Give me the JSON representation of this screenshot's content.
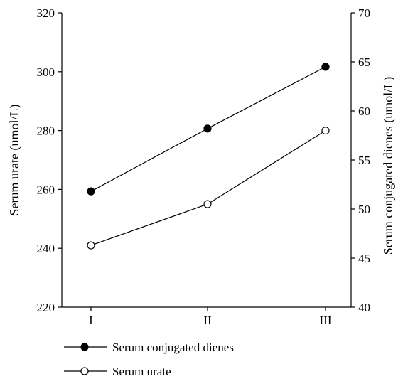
{
  "chart_data": {
    "type": "line",
    "categories": [
      "I",
      "II",
      "III"
    ],
    "series": [
      {
        "name": "Serum conjugated dienes",
        "axis": "right",
        "marker": "filled-circle",
        "values": [
          51.8,
          58.2,
          64.5
        ]
      },
      {
        "name": "Serum urate",
        "axis": "left",
        "marker": "open-circle",
        "values": [
          241,
          255,
          280
        ]
      }
    ],
    "y_left": {
      "label": "Serum urate (umol/L)",
      "lim": [
        220,
        320
      ],
      "ticks": [
        "220",
        "240",
        "260",
        "280",
        "300",
        "320"
      ]
    },
    "y_right": {
      "label": "Serum conjugated dienes (umol/L)",
      "lim": [
        40,
        70
      ],
      "ticks": [
        "40",
        "45",
        "50",
        "55",
        "60",
        "65",
        "70"
      ]
    },
    "grid": false,
    "legend_placement": "bottom-left"
  }
}
